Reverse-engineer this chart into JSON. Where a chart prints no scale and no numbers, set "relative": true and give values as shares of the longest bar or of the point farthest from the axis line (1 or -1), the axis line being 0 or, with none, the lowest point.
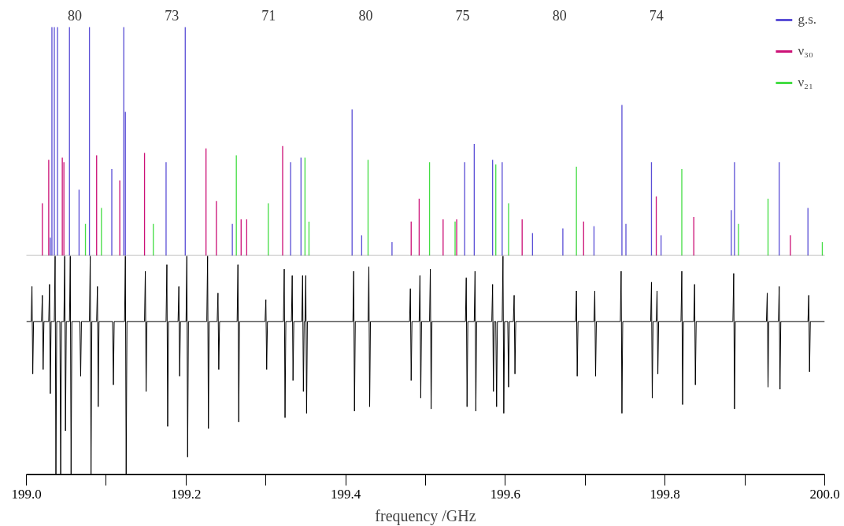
{
  "chart_data": [
    {
      "type": "bar",
      "relative": true,
      "xlim": [
        199.0,
        200.0
      ],
      "tick_labels": false,
      "legend": "top right",
      "annotations": [
        "80",
        "73",
        "71",
        "80",
        "75",
        "80",
        "74"
      ],
      "series": [
        {
          "name": "g.s.",
          "color": "#5b4fd6",
          "x": [
            199.03,
            199.032,
            199.035,
            199.039,
            199.054,
            199.066,
            199.079,
            199.107,
            199.122,
            199.124,
            199.175,
            199.199,
            199.258,
            199.331,
            199.344,
            199.408,
            199.42,
            199.458,
            199.549,
            199.561,
            199.584,
            199.596,
            199.634,
            199.672,
            199.711,
            199.746,
            199.751,
            199.783,
            199.795,
            199.883,
            199.887,
            199.943,
            199.979
          ],
          "values": [
            0.08,
            1,
            1,
            1,
            1,
            0.29,
            1,
            0.38,
            1,
            0.63,
            0.41,
            1,
            0.14,
            0.41,
            0.43,
            0.64,
            0.09,
            0.06,
            0.41,
            0.49,
            0.42,
            0.41,
            0.1,
            0.12,
            0.13,
            0.66,
            0.14,
            0.41,
            0.09,
            0.2,
            0.41,
            0.41,
            0.21
          ]
        },
        {
          "name": "ν₃₀",
          "color": "#cc1177",
          "x": [
            199.02,
            199.028,
            199.045,
            199.047,
            199.088,
            199.117,
            199.148,
            199.225,
            199.238,
            199.269,
            199.276,
            199.321,
            199.482,
            199.492,
            199.522,
            199.539,
            199.621,
            199.698,
            199.789,
            199.836,
            199.957
          ],
          "values": [
            0.23,
            0.42,
            0.43,
            0.41,
            0.44,
            0.33,
            0.45,
            0.47,
            0.24,
            0.16,
            0.16,
            0.48,
            0.15,
            0.25,
            0.16,
            0.16,
            0.16,
            0.15,
            0.26,
            0.17,
            0.09
          ]
        },
        {
          "name": "ν₂₁",
          "color": "#44dd44",
          "x": [
            199.074,
            199.094,
            199.159,
            199.263,
            199.303,
            199.349,
            199.354,
            199.428,
            199.505,
            199.537,
            199.588,
            199.604,
            199.689,
            199.821,
            199.892,
            199.929,
            199.997
          ],
          "values": [
            0.14,
            0.21,
            0.14,
            0.44,
            0.23,
            0.43,
            0.15,
            0.42,
            0.41,
            0.15,
            0.4,
            0.23,
            0.39,
            0.38,
            0.14,
            0.25,
            0.06
          ]
        }
      ]
    },
    {
      "type": "line",
      "relative": true,
      "xlim": [
        199.0,
        200.0
      ],
      "xlabel": "frequency /GHz",
      "tick_labels": "x",
      "xticks": [
        {
          "value": 199.0,
          "label": "199.0"
        },
        {
          "value": 199.1,
          "label": null
        },
        199.2,
        {
          "value": 199.3,
          "label": null
        },
        199.4,
        {
          "value": 199.5,
          "label": null
        },
        199.6,
        {
          "value": 199.7,
          "label": null
        },
        199.8,
        {
          "value": 199.9,
          "label": null
        },
        {
          "value": 200.0,
          "label": "200.0"
        }
      ],
      "series": [
        {
          "color": "#000000",
          "x": [
            199.0,
            199.006,
            199.007,
            199.008,
            199.009,
            199.019,
            199.02,
            199.021,
            199.022,
            199.028,
            199.029,
            199.03,
            199.031,
            199.035,
            199.036,
            199.037,
            199.038,
            199.042,
            199.043,
            199.044,
            199.047,
            199.048,
            199.049,
            199.05,
            199.054,
            199.055,
            199.056,
            199.057,
            199.067,
            199.068,
            199.069,
            199.079,
            199.08,
            199.081,
            199.082,
            199.088,
            199.089,
            199.09,
            199.091,
            199.108,
            199.109,
            199.11,
            199.123,
            199.124,
            199.125,
            199.126,
            199.148,
            199.149,
            199.15,
            199.151,
            199.175,
            199.176,
            199.177,
            199.178,
            199.19,
            199.191,
            199.192,
            199.193,
            199.2,
            199.201,
            199.202,
            199.203,
            199.226,
            199.227,
            199.228,
            199.229,
            199.239,
            199.24,
            199.241,
            199.242,
            199.264,
            199.265,
            199.266,
            199.267,
            199.299,
            199.3,
            199.301,
            199.302,
            199.322,
            199.323,
            199.324,
            199.325,
            199.332,
            199.333,
            199.334,
            199.335,
            199.345,
            199.346,
            199.347,
            199.348,
            199.349,
            199.35,
            199.351,
            199.352,
            199.409,
            199.41,
            199.411,
            199.412,
            199.428,
            199.429,
            199.43,
            199.431,
            199.48,
            199.481,
            199.482,
            199.483,
            199.492,
            199.493,
            199.494,
            199.495,
            199.505,
            199.506,
            199.507,
            199.508,
            199.55,
            199.551,
            199.552,
            199.553,
            199.561,
            199.562,
            199.563,
            199.564,
            199.583,
            199.584,
            199.585,
            199.586,
            199.588,
            199.589,
            199.59,
            199.596,
            199.597,
            199.598,
            199.599,
            199.603,
            199.604,
            199.605,
            199.61,
            199.611,
            199.612,
            199.613,
            199.688,
            199.689,
            199.69,
            199.691,
            199.711,
            199.712,
            199.713,
            199.714,
            199.744,
            199.745,
            199.746,
            199.747,
            199.782,
            199.783,
            199.784,
            199.785,
            199.789,
            199.79,
            199.791,
            199.792,
            199.82,
            199.821,
            199.822,
            199.823,
            199.836,
            199.837,
            199.838,
            199.839,
            199.885,
            199.886,
            199.887,
            199.888,
            199.927,
            199.928,
            199.929,
            199.93,
            199.942,
            199.943,
            199.944,
            199.945,
            199.979,
            199.98,
            199.981,
            199.982,
            200.0
          ],
          "values": [
            0.7,
            0.7,
            0.86,
            0.46,
            0.7,
            0.7,
            0.82,
            0.48,
            0.7,
            0.7,
            0.87,
            0.37,
            0.7,
            0.7,
            1,
            0,
            0.7,
            0.7,
            0,
            0.7,
            0.7,
            1,
            0.2,
            0.7,
            0.7,
            1,
            0,
            0.7,
            0.7,
            0.45,
            0.7,
            0.7,
            1,
            0,
            0.7,
            0.7,
            0.86,
            0.31,
            0.7,
            0.7,
            0.41,
            0.7,
            0.7,
            1,
            0,
            0.7,
            0.7,
            0.93,
            0.38,
            0.7,
            0.7,
            0.96,
            0.22,
            0.7,
            0.7,
            0.86,
            0.45,
            0.7,
            0.7,
            1,
            0.08,
            0.7,
            0.7,
            1,
            0.21,
            0.7,
            0.7,
            0.83,
            0.48,
            0.7,
            0.7,
            0.96,
            0.24,
            0.7,
            0.7,
            0.8,
            0.48,
            0.7,
            0.7,
            0.94,
            0.26,
            0.7,
            0.7,
            0.91,
            0.43,
            0.7,
            0.7,
            0.91,
            0.38,
            0.7,
            0.7,
            0.91,
            0.28,
            0.7,
            0.7,
            0.93,
            0.29,
            0.7,
            0.7,
            0.95,
            0.31,
            0.7,
            0.7,
            0.85,
            0.43,
            0.7,
            0.7,
            0.91,
            0.35,
            0.7,
            0.7,
            0.94,
            0.3,
            0.7,
            0.7,
            0.9,
            0.31,
            0.7,
            0.7,
            0.93,
            0.29,
            0.7,
            0.7,
            0.87,
            0.38,
            0.7,
            0.7,
            0.31,
            0.7,
            0.7,
            1,
            0.28,
            0.7,
            0.7,
            0.4,
            0.7,
            0.7,
            0.82,
            0.46,
            0.7,
            0.7,
            0.84,
            0.45,
            0.7,
            0.7,
            0.84,
            0.45,
            0.7,
            0.7,
            0.93,
            0.28,
            0.7,
            0.7,
            0.88,
            0.35,
            0.7,
            0.7,
            0.84,
            0.46,
            0.7,
            0.7,
            0.93,
            0.32,
            0.7,
            0.7,
            0.87,
            0.41,
            0.7,
            0.7,
            0.92,
            0.3,
            0.7,
            0.7,
            0.83,
            0.4,
            0.7,
            0.7,
            0.86,
            0.39,
            0.7,
            0.7,
            0.82,
            0.47,
            0.7,
            0.7
          ]
        }
      ]
    }
  ]
}
